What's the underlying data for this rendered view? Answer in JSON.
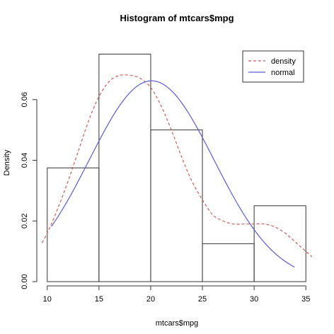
{
  "chart_data": {
    "type": "histogram",
    "title": "Histogram of mtcars$mpg",
    "xlabel": "mtcars$mpg",
    "ylabel": "Density",
    "xlim": [
      9.4,
      35.6
    ],
    "ylim": [
      0,
      0.08
    ],
    "x_ticks": [
      10,
      15,
      20,
      25,
      30,
      35
    ],
    "y_ticks": [
      0.0,
      0.02,
      0.04,
      0.06
    ],
    "y_tick_labels": [
      "0.00",
      "0.02",
      "0.04",
      "0.06"
    ],
    "bins": [
      {
        "start": 10,
        "end": 15,
        "density": 0.0375
      },
      {
        "start": 15,
        "end": 20,
        "density": 0.075
      },
      {
        "start": 20,
        "end": 25,
        "density": 0.05
      },
      {
        "start": 25,
        "end": 30,
        "density": 0.0125
      },
      {
        "start": 30,
        "end": 35,
        "density": 0.025
      }
    ],
    "series": [
      {
        "name": "density",
        "style": "dashed",
        "color": "#cd5c5c",
        "x": [
          9.0,
          10.0,
          11.0,
          12.0,
          13.0,
          14.0,
          15.0,
          16.0,
          17.0,
          18.0,
          19.0,
          20.0,
          21.0,
          22.0,
          23.0,
          24.0,
          25.0,
          26.0,
          27.0,
          28.0,
          29.0,
          30.0,
          31.0,
          32.0,
          33.0,
          34.0,
          35.0,
          36.0
        ],
        "y": [
          0.01,
          0.016,
          0.024,
          0.033,
          0.043,
          0.053,
          0.061,
          0.066,
          0.068,
          0.068,
          0.067,
          0.064,
          0.058,
          0.05,
          0.041,
          0.033,
          0.027,
          0.022,
          0.02,
          0.019,
          0.019,
          0.019,
          0.019,
          0.018,
          0.016,
          0.013,
          0.01,
          0.007
        ]
      },
      {
        "name": "normal",
        "style": "solid",
        "color": "#5b5bd6",
        "mean": 20.09,
        "sd": 6.027,
        "x_range": [
          10.4,
          33.9
        ]
      }
    ],
    "legend": {
      "position": "top-right",
      "entries": [
        {
          "label": "density",
          "style": "dashed",
          "color": "#cd5c5c"
        },
        {
          "label": "normal",
          "style": "solid",
          "color": "#5b5bd6"
        }
      ]
    }
  }
}
